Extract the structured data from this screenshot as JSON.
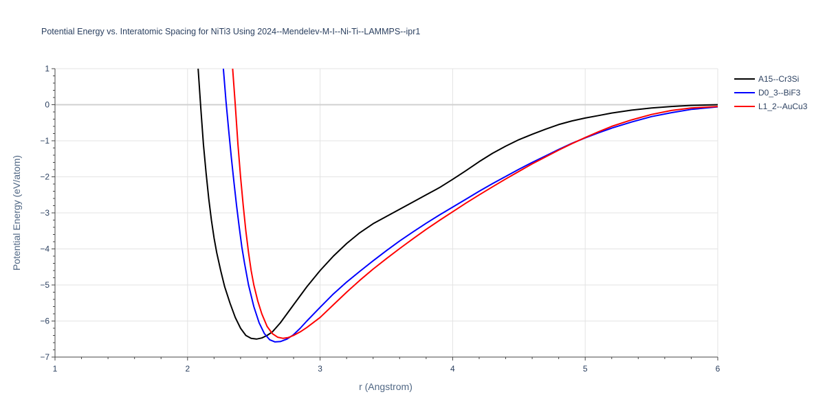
{
  "chart_data": {
    "type": "line",
    "title": "Potential Energy vs. Interatomic Spacing for NiTi3 Using 2024--Mendelev-M-I--Ni-Ti--LAMMPS--ipr1",
    "xlabel": "r (Angstrom)",
    "ylabel": "Potential Energy (eV/atom)",
    "xlim": [
      1,
      6
    ],
    "ylim": [
      -7,
      1
    ],
    "xticks": [
      1,
      2,
      3,
      4,
      5,
      6
    ],
    "xtick_labels": [
      "1",
      "2",
      "3",
      "4",
      "5",
      "6"
    ],
    "yticks": [
      -7,
      -6,
      -5,
      -4,
      -3,
      -2,
      -1,
      0,
      1
    ],
    "ytick_labels": [
      "−7",
      "−6",
      "−5",
      "−4",
      "−3",
      "−2",
      "−1",
      "0",
      "1"
    ],
    "grid": true,
    "legend_position": "top-right",
    "series": [
      {
        "name": "A15--Cr3Si",
        "color": "#000000",
        "x": [
          2.08,
          2.1,
          2.12,
          2.14,
          2.16,
          2.18,
          2.2,
          2.22,
          2.25,
          2.28,
          2.32,
          2.36,
          2.4,
          2.44,
          2.48,
          2.52,
          2.56,
          2.6,
          2.64,
          2.7,
          2.8,
          2.9,
          3.0,
          3.1,
          3.2,
          3.3,
          3.4,
          3.5,
          3.6,
          3.7,
          3.8,
          3.9,
          4.0,
          4.1,
          4.2,
          4.3,
          4.4,
          4.5,
          4.6,
          4.7,
          4.8,
          4.9,
          5.0,
          5.1,
          5.2,
          5.35,
          5.5,
          5.65,
          5.8,
          6.0
        ],
        "y": [
          1.0,
          -0.1,
          -1.1,
          -1.9,
          -2.6,
          -3.2,
          -3.7,
          -4.1,
          -4.6,
          -5.05,
          -5.5,
          -5.9,
          -6.2,
          -6.4,
          -6.48,
          -6.5,
          -6.47,
          -6.4,
          -6.3,
          -6.05,
          -5.55,
          -5.05,
          -4.6,
          -4.2,
          -3.85,
          -3.55,
          -3.3,
          -3.1,
          -2.9,
          -2.7,
          -2.5,
          -2.3,
          -2.07,
          -1.83,
          -1.58,
          -1.35,
          -1.15,
          -0.97,
          -0.82,
          -0.68,
          -0.55,
          -0.45,
          -0.37,
          -0.3,
          -0.23,
          -0.15,
          -0.09,
          -0.05,
          -0.02,
          0.0
        ]
      },
      {
        "name": "D0_3--BiF3",
        "color": "#0000ff",
        "x": [
          2.27,
          2.29,
          2.31,
          2.33,
          2.35,
          2.37,
          2.39,
          2.41,
          2.43,
          2.46,
          2.5,
          2.54,
          2.58,
          2.62,
          2.66,
          2.7,
          2.75,
          2.8,
          2.85,
          2.9,
          3.0,
          3.1,
          3.2,
          3.3,
          3.4,
          3.5,
          3.6,
          3.7,
          3.8,
          3.9,
          4.0,
          4.1,
          4.2,
          4.3,
          4.4,
          4.5,
          4.6,
          4.7,
          4.8,
          4.9,
          5.0,
          5.1,
          5.2,
          5.35,
          5.5,
          5.65,
          5.8,
          6.0
        ],
        "y": [
          1.0,
          0.1,
          -0.7,
          -1.45,
          -2.15,
          -2.8,
          -3.4,
          -3.95,
          -4.4,
          -5.0,
          -5.6,
          -6.05,
          -6.35,
          -6.52,
          -6.58,
          -6.57,
          -6.5,
          -6.38,
          -6.2,
          -6.0,
          -5.62,
          -5.25,
          -4.92,
          -4.62,
          -4.33,
          -4.05,
          -3.78,
          -3.53,
          -3.29,
          -3.06,
          -2.84,
          -2.62,
          -2.4,
          -2.19,
          -1.99,
          -1.79,
          -1.6,
          -1.42,
          -1.24,
          -1.07,
          -0.92,
          -0.78,
          -0.65,
          -0.48,
          -0.33,
          -0.22,
          -0.13,
          -0.06
        ]
      },
      {
        "name": "L1_2--AuCu3",
        "color": "#ff0000",
        "x": [
          2.34,
          2.36,
          2.38,
          2.4,
          2.42,
          2.44,
          2.46,
          2.48,
          2.5,
          2.53,
          2.56,
          2.6,
          2.64,
          2.68,
          2.72,
          2.76,
          2.8,
          2.85,
          2.9,
          3.0,
          3.1,
          3.2,
          3.3,
          3.4,
          3.5,
          3.6,
          3.7,
          3.8,
          3.9,
          4.0,
          4.1,
          4.2,
          4.3,
          4.4,
          4.5,
          4.6,
          4.7,
          4.8,
          4.9,
          5.0,
          5.1,
          5.2,
          5.35,
          5.5,
          5.65,
          5.8,
          6.0
        ],
        "y": [
          1.0,
          0.0,
          -1.1,
          -2.0,
          -2.8,
          -3.5,
          -4.1,
          -4.6,
          -5.0,
          -5.45,
          -5.8,
          -6.15,
          -6.35,
          -6.45,
          -6.48,
          -6.46,
          -6.4,
          -6.3,
          -6.18,
          -5.9,
          -5.55,
          -5.2,
          -4.87,
          -4.56,
          -4.27,
          -3.99,
          -3.72,
          -3.46,
          -3.21,
          -2.97,
          -2.73,
          -2.5,
          -2.28,
          -2.06,
          -1.85,
          -1.64,
          -1.45,
          -1.26,
          -1.08,
          -0.91,
          -0.75,
          -0.6,
          -0.42,
          -0.27,
          -0.16,
          -0.09,
          -0.05
        ]
      }
    ]
  }
}
